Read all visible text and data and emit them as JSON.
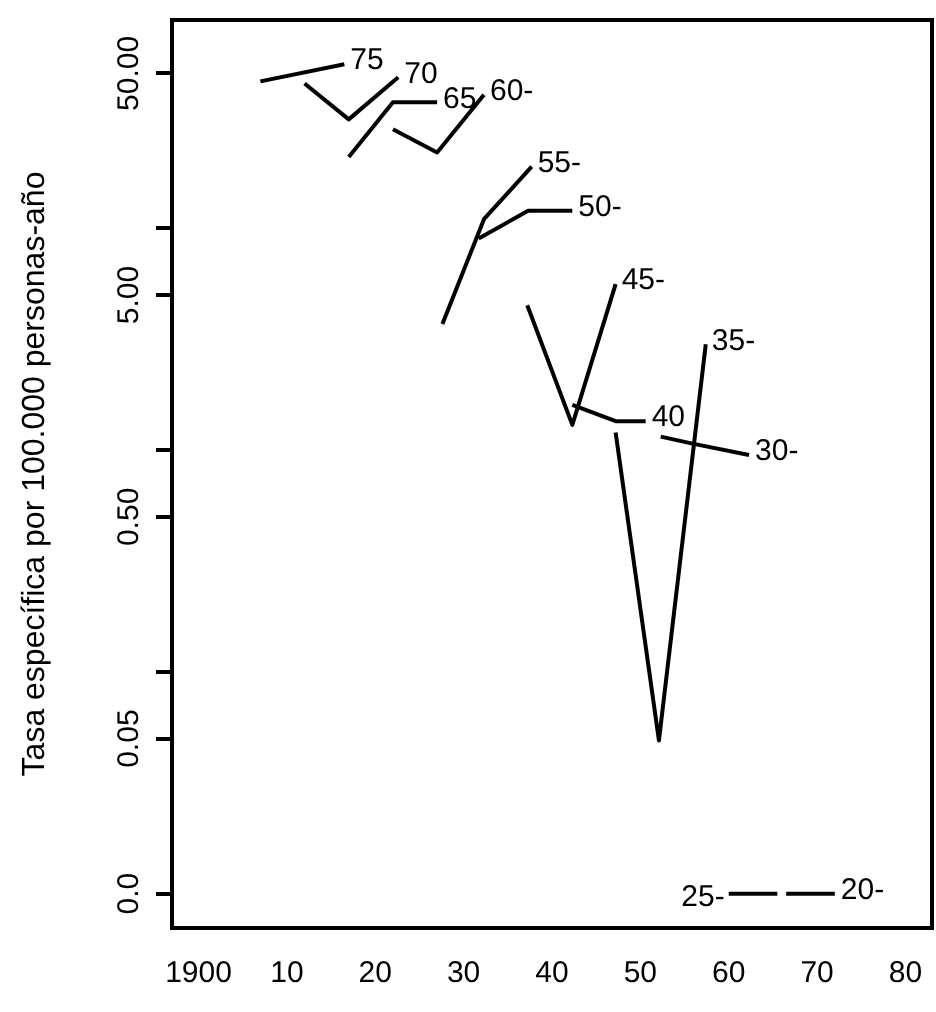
{
  "chart_data": {
    "type": "line",
    "ylabel": "Tasa específica por 100.000 personas-año",
    "log": "y",
    "grid": false,
    "legend": false,
    "marker": "none",
    "line_style": "solid",
    "xlim": [
      1897,
      1983
    ],
    "xticks": [
      {
        "value": 1900,
        "label": "1900"
      },
      {
        "value": 1910,
        "label": "10"
      },
      {
        "value": 1920,
        "label": "20"
      },
      {
        "value": 1930,
        "label": "30"
      },
      {
        "value": 1940,
        "label": "40"
      },
      {
        "value": 1950,
        "label": "50"
      },
      {
        "value": 1960,
        "label": "60"
      },
      {
        "value": 1970,
        "label": "70"
      },
      {
        "value": 1980,
        "label": "80"
      }
    ],
    "ylim": [
      0.007,
      87
    ],
    "yticks": [
      {
        "value": 50,
        "label": "50.00"
      },
      {
        "value": 10,
        "label": null
      },
      {
        "value": 5,
        "label": "5.00"
      },
      {
        "value": 1,
        "label": null
      },
      {
        "value": 0.5,
        "label": "0.50"
      },
      {
        "value": 0.1,
        "label": null
      },
      {
        "value": 0.05,
        "label": "0.05"
      },
      {
        "value": 0.01,
        "label": "0.0"
      }
    ],
    "series": [
      {
        "name": "75",
        "color": "#000000",
        "x": [
          1907,
          1916.5
        ],
        "values": [
          46,
          55
        ]
      },
      {
        "name": "70",
        "color": "#000000",
        "x": [
          1912,
          1917,
          1922.6
        ],
        "values": [
          45,
          31,
          48
        ]
      },
      {
        "name": "65",
        "color": "#000000",
        "x": [
          1917,
          1922,
          1927
        ],
        "values": [
          21,
          37,
          37
        ]
      },
      {
        "name": "60-",
        "color": "#000000",
        "x": [
          1922,
          1927,
          1932.3
        ],
        "values": [
          28,
          22,
          40
        ]
      },
      {
        "name": "55-",
        "color": "#000000",
        "x": [
          1927.6,
          1932.3,
          1937.7
        ],
        "values": [
          3.7,
          11,
          19
        ]
      },
      {
        "name": "50-",
        "color": "#000000",
        "x": [
          1931.7,
          1937.3,
          1942.3
        ],
        "values": [
          9,
          12,
          12
        ]
      },
      {
        "name": "45-",
        "color": "#000000",
        "x": [
          1937.2,
          1942.3,
          1947.2
        ],
        "values": [
          4.5,
          1.3,
          5.6
        ]
      },
      {
        "name": "40",
        "color": "#000000",
        "x": [
          1942.3,
          1947.2,
          1950.6
        ],
        "values": [
          1.6,
          1.35,
          1.35
        ]
      },
      {
        "name": "35-",
        "color": "#000000",
        "x": [
          1947.2,
          1952.1,
          1957.4
        ],
        "values": [
          1.2,
          0.049,
          3
        ]
      },
      {
        "name": "30-",
        "color": "#000000",
        "x": [
          1952.3,
          1955.9,
          1962.3
        ],
        "values": [
          1.15,
          1.07,
          0.95
        ]
      },
      {
        "name": "25-",
        "color": "#000000",
        "x": [
          1965.5,
          1960
        ],
        "values": [
          0.01,
          0.01
        ]
      },
      {
        "name": "20-",
        "color": "#000000",
        "x": [
          1966.5,
          1972
        ],
        "values": [
          0.01,
          0.01
        ]
      }
    ]
  }
}
